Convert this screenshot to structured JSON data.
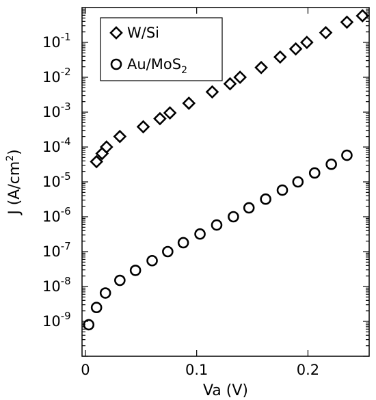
{
  "chart_data": {
    "type": "scatter",
    "xlabel": "Va (V)",
    "ylabel_main": "J (A/cm",
    "ylabel_sup": "2",
    "ylabel_end": ")",
    "xlim": [
      -0.003,
      0.255
    ],
    "ylim": [
      1e-10,
      1
    ],
    "y_scale": "log",
    "grid": false,
    "legend_position": "top-left",
    "x_ticks": [
      {
        "value": 0,
        "label": "0"
      },
      {
        "value": 0.1,
        "label": "0.1"
      },
      {
        "value": 0.2,
        "label": "0.2"
      }
    ],
    "y_ticks": [
      {
        "exp": -9,
        "base": "10",
        "sup": "-9"
      },
      {
        "exp": -8,
        "base": "10",
        "sup": "-8"
      },
      {
        "exp": -7,
        "base": "10",
        "sup": "-7"
      },
      {
        "exp": -6,
        "base": "10",
        "sup": "-6"
      },
      {
        "exp": -5,
        "base": "10",
        "sup": "-5"
      },
      {
        "exp": -4,
        "base": "10",
        "sup": "-4"
      },
      {
        "exp": -3,
        "base": "10",
        "sup": "-3"
      },
      {
        "exp": -2,
        "base": "10",
        "sup": "-2"
      },
      {
        "exp": -1,
        "base": "10",
        "sup": "-1"
      }
    ],
    "series": [
      {
        "name": "W/Si",
        "marker": "diamond",
        "points": [
          [
            0.01,
            3.8e-05
          ],
          [
            0.015,
            6.5e-05
          ],
          [
            0.019,
            0.0001
          ],
          [
            0.031,
            0.0002
          ],
          [
            0.052,
            0.00038
          ],
          [
            0.067,
            0.00065
          ],
          [
            0.076,
            0.00095
          ],
          [
            0.093,
            0.0018
          ],
          [
            0.114,
            0.0038
          ],
          [
            0.13,
            0.0065
          ],
          [
            0.139,
            0.01
          ],
          [
            0.158,
            0.019
          ],
          [
            0.175,
            0.038
          ],
          [
            0.189,
            0.065
          ],
          [
            0.199,
            0.1
          ],
          [
            0.216,
            0.19
          ],
          [
            0.235,
            0.38
          ],
          [
            0.249,
            0.58
          ]
        ]
      },
      {
        "name_main": "Au/MoS",
        "name_sub": "2",
        "marker": "circle",
        "points": [
          [
            0.003,
            8e-10
          ],
          [
            0.01,
            2.5e-09
          ],
          [
            0.018,
            6.5e-09
          ],
          [
            0.031,
            1.5e-08
          ],
          [
            0.045,
            2.9e-08
          ],
          [
            0.06,
            5.5e-08
          ],
          [
            0.074,
            1e-07
          ],
          [
            0.088,
            1.8e-07
          ],
          [
            0.103,
            3.2e-07
          ],
          [
            0.118,
            5.8e-07
          ],
          [
            0.133,
            1e-06
          ],
          [
            0.147,
            1.8e-06
          ],
          [
            0.162,
            3.2e-06
          ],
          [
            0.177,
            5.8e-06
          ],
          [
            0.191,
            1e-05
          ],
          [
            0.206,
            1.8e-05
          ],
          [
            0.221,
            3.2e-05
          ],
          [
            0.235,
            5.8e-05
          ]
        ]
      }
    ]
  }
}
